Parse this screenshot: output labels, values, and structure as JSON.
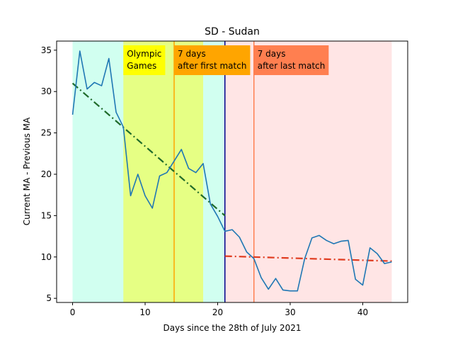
{
  "chart_data": {
    "type": "line",
    "title": "SD - Sudan",
    "xlabel": "Days since the 28th of July 2021",
    "ylabel": "Current MA - Previous MA",
    "xlim": [
      -2.2,
      46.2
    ],
    "ylim": [
      4.5,
      36.1
    ],
    "xticks": [
      0,
      10,
      20,
      30,
      40
    ],
    "yticks": [
      5,
      10,
      15,
      20,
      25,
      30,
      35
    ],
    "grid": false,
    "series": [
      {
        "color": "#1f77b4",
        "x": [
          0,
          1,
          2,
          3,
          4,
          5,
          6,
          7,
          8,
          9,
          10,
          11,
          12,
          13,
          14,
          15,
          16,
          17,
          18,
          19,
          20,
          21,
          22,
          23,
          24,
          25,
          26,
          27,
          28,
          29,
          30,
          31,
          32,
          33,
          34,
          35,
          36,
          37,
          38,
          39,
          40,
          41,
          42,
          43,
          44
        ],
        "y": [
          27.2,
          34.9,
          30.3,
          31.1,
          30.7,
          34.0,
          27.5,
          25.7,
          17.4,
          20.0,
          17.4,
          15.9,
          19.8,
          20.2,
          21.6,
          23.0,
          20.7,
          20.2,
          21.3,
          16.4,
          14.9,
          13.1,
          13.3,
          12.4,
          10.6,
          9.8,
          7.5,
          6.1,
          7.4,
          6.0,
          5.9,
          5.9,
          9.8,
          12.3,
          12.6,
          12.0,
          11.6,
          11.9,
          12.0,
          7.3,
          6.6,
          11.1,
          10.4,
          9.2,
          9.4
        ]
      }
    ],
    "trend_lines": [
      {
        "color": "#1f6b2a",
        "x": [
          0,
          21
        ],
        "y": [
          31.0,
          15.0
        ]
      },
      {
        "color": "#e03c20",
        "x": [
          21,
          44
        ],
        "y": [
          10.1,
          9.5
        ]
      }
    ],
    "shaded_regions": [
      {
        "x": [
          0,
          21
        ],
        "color": "#00ffaa",
        "opacity": 0.18
      },
      {
        "x": [
          7,
          18
        ],
        "color": "#ffff00",
        "opacity": 0.45
      },
      {
        "x": [
          21,
          44
        ],
        "color": "#ff9999",
        "opacity": 0.25
      }
    ],
    "vertical_lines": [
      {
        "x": 14,
        "color": "#ffa500"
      },
      {
        "x": 21,
        "color": "#00008b"
      },
      {
        "x": 25,
        "color": "#ff7f50"
      }
    ],
    "annotations": [
      {
        "text": [
          "Olympic",
          "Games"
        ],
        "x": 7,
        "y": 35.5,
        "bg": "#ffff00"
      },
      {
        "text": [
          "7 days",
          "after first match"
        ],
        "x": 14,
        "y": 35.5,
        "bg": "#ffa500"
      },
      {
        "text": [
          "7 days",
          "after last match"
        ],
        "x": 25,
        "y": 35.5,
        "bg": "#ff7f50"
      }
    ]
  }
}
